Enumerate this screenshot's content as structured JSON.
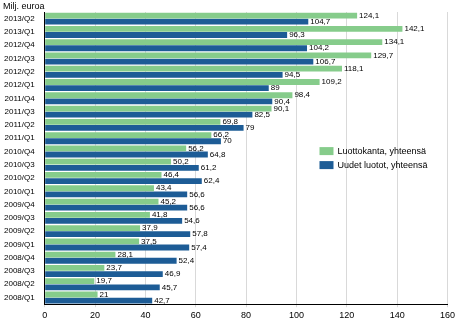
{
  "chart_data": {
    "type": "bar",
    "orientation": "horizontal",
    "xlabel": "Milj. euroa",
    "categories": [
      "2013/Q2",
      "2013/Q1",
      "2012/Q4",
      "2012/Q3",
      "2012/Q2",
      "2012/Q1",
      "2011/Q4",
      "2011/Q3",
      "2011/Q2",
      "2011/Q1",
      "2010/Q4",
      "2010/Q3",
      "2010/Q2",
      "2010/Q1",
      "2009/Q4",
      "2009/Q3",
      "2009/Q2",
      "2009/Q1",
      "2008/Q4",
      "2008/Q3",
      "2008/Q2",
      "2008/Q1"
    ],
    "series": [
      {
        "name": "Luottokanta, yhteensä",
        "color": "#86cc8b",
        "values": [
          124.1,
          142.1,
          134.1,
          129.7,
          118.1,
          109.2,
          98.4,
          90.1,
          69.8,
          66.2,
          56.2,
          50.2,
          46.4,
          43.4,
          45.2,
          41.8,
          37.9,
          37.5,
          28.1,
          23.7,
          19.7,
          21
        ],
        "value_labels": [
          "124,1",
          "142,1",
          "134,1",
          "129,7",
          "118,1",
          "109,2",
          "98,4",
          "90,1",
          "69,8",
          "66,2",
          "56,2",
          "50,2",
          "46,4",
          "43,4",
          "45,2",
          "41,8",
          "37,9",
          "37,5",
          "28,1",
          "23,7",
          "19,7",
          "21"
        ]
      },
      {
        "name": "Uudet luotot, yhteensä",
        "color": "#1d5c96",
        "values": [
          104.7,
          96.3,
          104.2,
          106.7,
          94.5,
          89,
          90.4,
          82.5,
          79,
          70,
          64.8,
          61.2,
          62.4,
          56.6,
          56.6,
          54.6,
          57.8,
          57.4,
          52.4,
          46.9,
          45.7,
          42.7
        ],
        "value_labels": [
          "104,7",
          "96,3",
          "104,2",
          "106,7",
          "94,5",
          "89",
          "90,4",
          "82,5",
          "79",
          "70",
          "64,8",
          "61,2",
          "62,4",
          "56,6",
          "56,6",
          "54,6",
          "57,8",
          "57,4",
          "52,4",
          "46,9",
          "45,7",
          "42,7"
        ]
      }
    ],
    "xlim": [
      0,
      160
    ],
    "xticks": [
      0,
      20,
      40,
      60,
      80,
      100,
      120,
      140,
      160
    ],
    "grid": true,
    "data_labels": true,
    "legend": "right"
  }
}
